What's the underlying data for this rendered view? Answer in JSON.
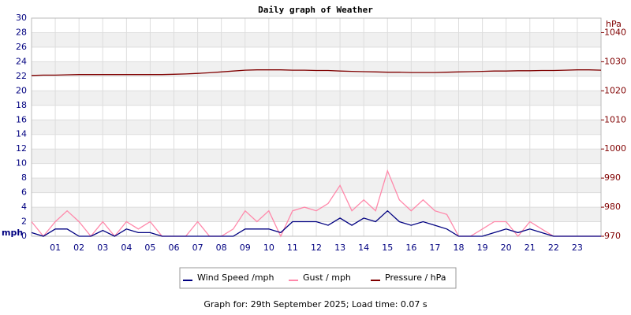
{
  "chart_data": {
    "type": "line",
    "title": "Daily graph of Weather",
    "ylabel": "mph",
    "y2label": "hPa",
    "x": [
      0,
      0.5,
      1,
      1.5,
      2,
      2.5,
      3,
      3.5,
      4,
      4.5,
      5,
      5.5,
      6,
      6.5,
      7,
      7.5,
      8,
      8.5,
      9,
      9.5,
      10,
      10.5,
      11,
      11.5,
      12,
      12.5,
      13,
      13.5,
      14,
      14.5,
      15,
      15.5,
      16,
      16.5,
      17,
      17.5,
      18,
      18.5,
      19,
      19.5,
      20,
      20.5,
      21,
      21.5,
      22,
      22.5,
      23,
      23.5,
      24
    ],
    "xlim": [
      0,
      24
    ],
    "xticks": [
      {
        "value": 1,
        "label": "01"
      },
      {
        "value": 2,
        "label": "02"
      },
      {
        "value": 3,
        "label": "03"
      },
      {
        "value": 4,
        "label": "04"
      },
      {
        "value": 5,
        "label": "05"
      },
      {
        "value": 6,
        "label": "06"
      },
      {
        "value": 7,
        "label": "07"
      },
      {
        "value": 8,
        "label": "08"
      },
      {
        "value": 9,
        "label": "09"
      },
      10,
      11,
      12,
      13,
      14,
      15,
      16,
      17,
      18,
      19,
      20,
      21,
      22,
      23
    ],
    "ylim": [
      0,
      30
    ],
    "yticks": [
      0,
      2,
      4,
      6,
      8,
      10,
      12,
      14,
      16,
      18,
      20,
      22,
      24,
      26,
      28,
      30
    ],
    "y2lim": [
      970,
      1045
    ],
    "y2ticks": [
      970,
      980,
      990,
      1000,
      1010,
      1020,
      1030,
      1040
    ],
    "grid": true,
    "series": [
      {
        "name": "Wind Speed /mph",
        "color": "#000080",
        "values": [
          0.5,
          0,
          1,
          1,
          0,
          0,
          0.8,
          0,
          1,
          0.5,
          0.5,
          0,
          0,
          0,
          0,
          0,
          0,
          0,
          1,
          1,
          1,
          0.5,
          2,
          2,
          2,
          1.5,
          2.5,
          1.5,
          2.5,
          2,
          3.5,
          2,
          1.5,
          2,
          1.5,
          1,
          0,
          0,
          0,
          0.5,
          1,
          0.5,
          1,
          0.5,
          0,
          0,
          0,
          0,
          0
        ]
      },
      {
        "name": "Gust / mph",
        "color": "#ff88aa",
        "values": [
          2,
          0,
          2,
          3.5,
          2,
          0,
          2,
          0,
          2,
          1,
          2,
          0,
          0,
          0,
          2,
          0,
          0,
          1,
          3.5,
          2,
          3.5,
          0,
          3.5,
          4,
          3.5,
          4.5,
          7,
          3.5,
          5,
          3.5,
          9,
          5,
          3.5,
          5,
          3.5,
          3,
          0,
          0,
          1,
          2,
          2,
          0,
          2,
          1,
          0,
          0,
          0,
          0,
          0
        ]
      },
      {
        "name": "Pressure / hPa",
        "color": "#800000",
        "axis": "y2",
        "values": [
          1025.3,
          1025.4,
          1025.4,
          1025.5,
          1025.6,
          1025.6,
          1025.6,
          1025.6,
          1025.6,
          1025.6,
          1025.6,
          1025.6,
          1025.7,
          1025.8,
          1026.0,
          1026.2,
          1026.5,
          1026.8,
          1027.1,
          1027.2,
          1027.2,
          1027.2,
          1027.1,
          1027.1,
          1027.0,
          1027.0,
          1026.8,
          1026.7,
          1026.6,
          1026.5,
          1026.4,
          1026.4,
          1026.3,
          1026.3,
          1026.3,
          1026.4,
          1026.5,
          1026.6,
          1026.7,
          1026.8,
          1026.8,
          1026.9,
          1026.9,
          1027.0,
          1027.0,
          1027.1,
          1027.2,
          1027.2,
          1027.1
        ]
      }
    ],
    "footer": "Graph for: 29th September 2025; Load time: 0.07 s"
  }
}
